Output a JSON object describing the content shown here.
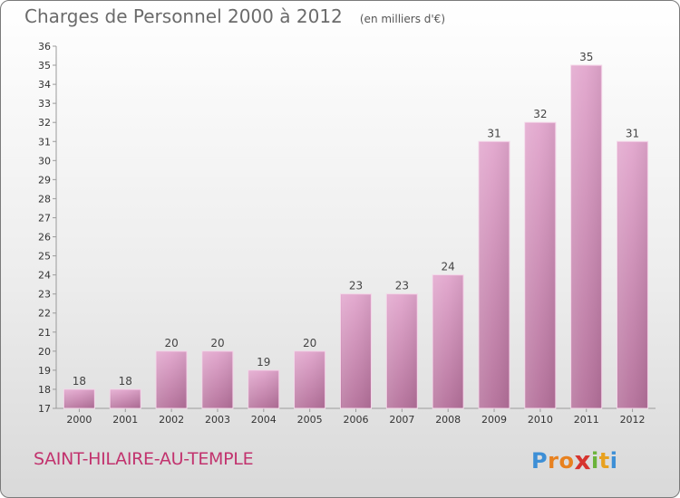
{
  "chart_data": {
    "type": "bar",
    "title": "Charges de Personnel 2000 à 2012",
    "subtitle": "(en milliers d'€)",
    "categories": [
      "2000",
      "2001",
      "2002",
      "2003",
      "2004",
      "2005",
      "2006",
      "2007",
      "2008",
      "2009",
      "2010",
      "2011",
      "2012"
    ],
    "values": [
      18,
      18,
      20,
      20,
      19,
      20,
      23,
      23,
      24,
      31,
      32,
      35,
      31
    ],
    "ylim": [
      17,
      36
    ],
    "yticks": [
      17,
      18,
      19,
      20,
      21,
      22,
      23,
      24,
      25,
      26,
      27,
      28,
      29,
      30,
      31,
      32,
      33,
      34,
      35,
      36
    ],
    "grid": false,
    "bar_color": "#d99ac0"
  },
  "place_name": "SAINT-HILAIRE-AU-TEMPLE",
  "logo": {
    "letters": [
      "P",
      "r",
      "o",
      "x",
      "i",
      "t",
      "i"
    ],
    "colors": [
      "#3d8fd6",
      "#e8811f",
      "#e8811f",
      "#d6342f",
      "#6bb33a",
      "#e8a11f",
      "#3d8fd6"
    ]
  }
}
